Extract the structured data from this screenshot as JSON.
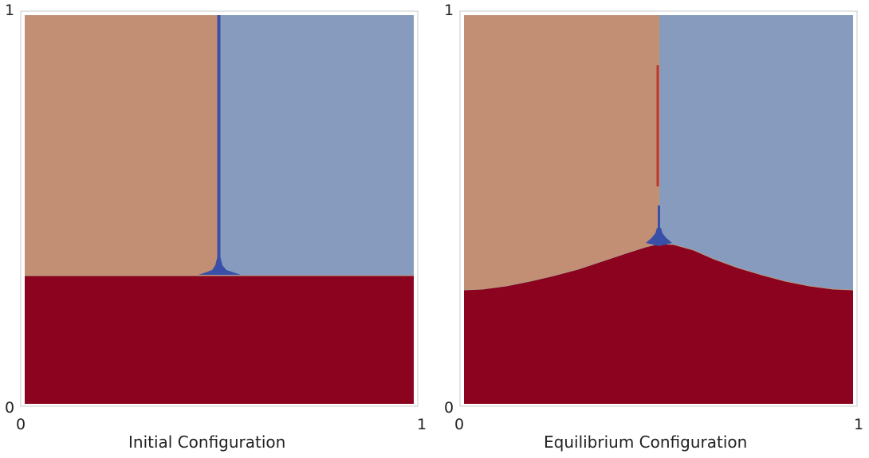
{
  "colors": {
    "tan": "#c28f75",
    "slate_blue": "#869bbe",
    "dark_red": "#8b031f",
    "deep_blue": "#3a4fa8",
    "bright_red": "#c0342a",
    "frame": "#c8c8c8"
  },
  "panels": [
    {
      "caption": "Initial Configuration",
      "ticks": {
        "x_min": "0",
        "x_max": "1",
        "y_min": "0",
        "y_max": "1"
      }
    },
    {
      "caption": "Equilibrium Configuration",
      "ticks": {
        "x_min": "0",
        "x_max": "1",
        "y_min": "0",
        "y_max": "1"
      }
    }
  ]
}
